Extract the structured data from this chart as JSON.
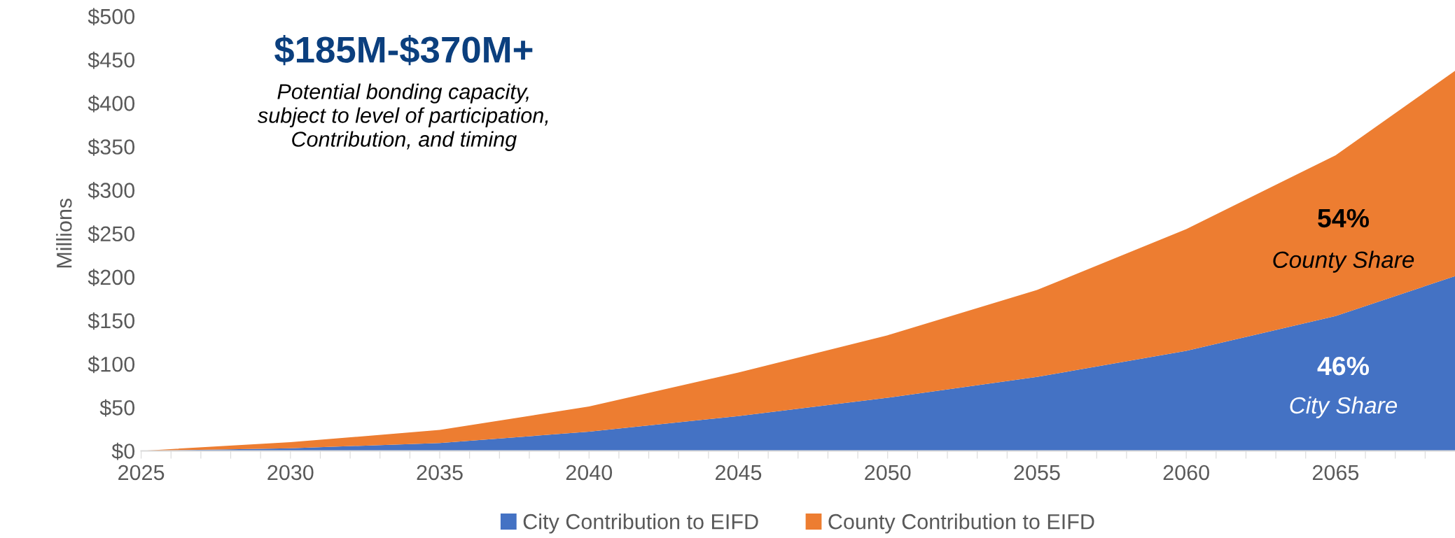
{
  "chart_data": {
    "type": "area",
    "stacked": true,
    "title": "$185M-$370M+",
    "subtitle": "Potential bonding capacity,\nsubject to level of participation,\nContribution, and timing",
    "ylabel": "Millions",
    "x": [
      2025,
      2030,
      2035,
      2040,
      2045,
      2050,
      2055,
      2060,
      2065,
      2069
    ],
    "series": [
      {
        "name": "City Contribution to EIFD",
        "color": "#4472c4",
        "values": [
          0,
          3,
          9,
          22,
          40,
          61,
          85,
          115,
          155,
          201
        ]
      },
      {
        "name": "County Contribution to EIFD",
        "color": "#ed7d31",
        "values": [
          0,
          7,
          15,
          29,
          50,
          72,
          100,
          140,
          185,
          236
        ]
      }
    ],
    "annotations": [
      "54%",
      "County Share",
      "46%",
      "City Share"
    ],
    "xlim": [
      2025,
      2069
    ],
    "xticks": [
      2025,
      {
        "value": 2026,
        "label": null
      },
      {
        "value": 2027,
        "label": null
      },
      {
        "value": 2028,
        "label": null
      },
      {
        "value": 2029,
        "label": null
      },
      2030,
      {
        "value": 2031,
        "label": null
      },
      {
        "value": 2032,
        "label": null
      },
      {
        "value": 2033,
        "label": null
      },
      {
        "value": 2034,
        "label": null
      },
      2035,
      {
        "value": 2036,
        "label": null
      },
      {
        "value": 2037,
        "label": null
      },
      {
        "value": 2038,
        "label": null
      },
      {
        "value": 2039,
        "label": null
      },
      2040,
      {
        "value": 2041,
        "label": null
      },
      {
        "value": 2042,
        "label": null
      },
      {
        "value": 2043,
        "label": null
      },
      {
        "value": 2044,
        "label": null
      },
      2045,
      {
        "value": 2046,
        "label": null
      },
      {
        "value": 2047,
        "label": null
      },
      {
        "value": 2048,
        "label": null
      },
      {
        "value": 2049,
        "label": null
      },
      2050,
      {
        "value": 2051,
        "label": null
      },
      {
        "value": 2052,
        "label": null
      },
      {
        "value": 2053,
        "label": null
      },
      {
        "value": 2054,
        "label": null
      },
      2055,
      {
        "value": 2056,
        "label": null
      },
      {
        "value": 2057,
        "label": null
      },
      {
        "value": 2058,
        "label": null
      },
      {
        "value": 2059,
        "label": null
      },
      2060,
      {
        "value": 2061,
        "label": null
      },
      {
        "value": 2062,
        "label": null
      },
      {
        "value": 2063,
        "label": null
      },
      {
        "value": 2064,
        "label": null
      },
      2065,
      {
        "value": 2066,
        "label": null
      },
      {
        "value": 2067,
        "label": null
      },
      {
        "value": 2068,
        "label": null
      }
    ],
    "ylim": [
      0,
      500
    ],
    "yticks": [
      {
        "value": 0,
        "label": "$0"
      },
      {
        "value": 50,
        "label": "$50"
      },
      {
        "value": 100,
        "label": "$100"
      },
      {
        "value": 150,
        "label": "$150"
      },
      {
        "value": 200,
        "label": "$200"
      },
      {
        "value": 250,
        "label": "$250"
      },
      {
        "value": 300,
        "label": "$300"
      },
      {
        "value": 350,
        "label": "$350"
      },
      {
        "value": 400,
        "label": "$400"
      },
      {
        "value": 450,
        "label": "$450"
      },
      {
        "value": 500,
        "label": "$500"
      }
    ],
    "grid": false,
    "legend": "bottom"
  }
}
